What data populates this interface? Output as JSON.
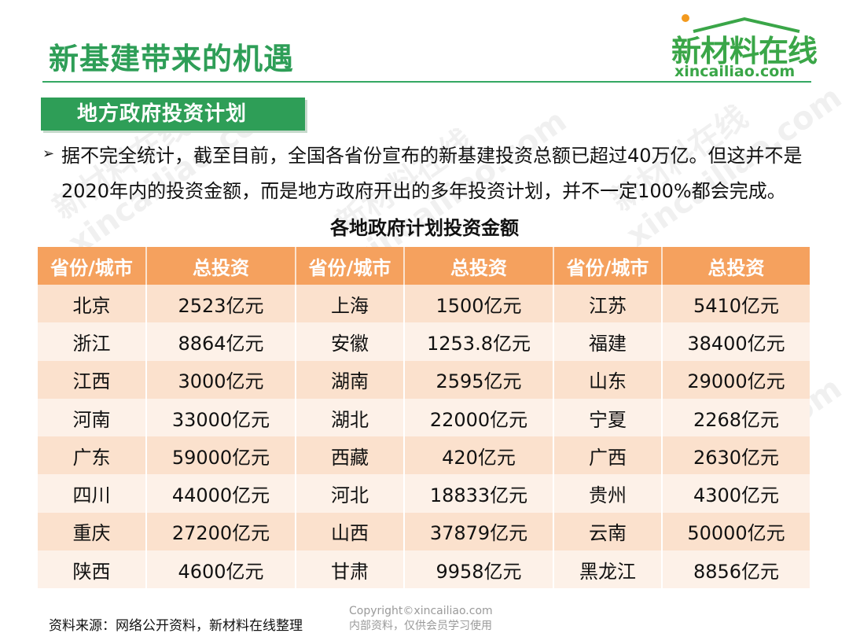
{
  "header": {
    "title": "新基建带来的机遇",
    "logo_cn": "新材料在线",
    "logo_en": "xincailiao.com"
  },
  "section": {
    "badge": "地方政府投资计划"
  },
  "intro": {
    "bullet": "➢",
    "text": "据不完全统计，截至目前，全国各省份宣布的新基建投资总额已超过40万亿。但这并不是2020年内的投资金额，而是地方政府开出的多年投资计划，并不一定100%都会完成。"
  },
  "table": {
    "caption": "各地政府计划投资金额",
    "headers": [
      "省份/城市",
      "总投资",
      "省份/城市",
      "总投资",
      "省份/城市",
      "总投资"
    ],
    "rows": [
      [
        "北京",
        "2523亿元",
        "上海",
        "1500亿元",
        "江苏",
        "5410亿元"
      ],
      [
        "浙江",
        "8864亿元",
        "安徽",
        "1253.8亿元",
        "福建",
        "38400亿元"
      ],
      [
        "江西",
        "3000亿元",
        "湖南",
        "2595亿元",
        "山东",
        "29000亿元"
      ],
      [
        "河南",
        "33000亿元",
        "湖北",
        "22000亿元",
        "宁夏",
        "2268亿元"
      ],
      [
        "广东",
        "59000亿元",
        "西藏",
        "420亿元",
        "广西",
        "2630亿元"
      ],
      [
        "四川",
        "44000亿元",
        "河北",
        "18833亿元",
        "贵州",
        "4300亿元"
      ],
      [
        "重庆",
        "27200亿元",
        "山西",
        "37879亿元",
        "云南",
        "50000亿元"
      ],
      [
        "陕西",
        "4600亿元",
        "甘肃",
        "9958亿元",
        "黑龙江",
        "8856亿元"
      ]
    ]
  },
  "footer": {
    "source": "资料来源：网络公开资料，新材料在线整理",
    "copyright_line1": "Copyright©xincailiao.com",
    "copyright_line2": "内部资料，仅供会员学习使用"
  },
  "watermark": {
    "cn": "新材料在线",
    "en": "xincailiao.com"
  },
  "colors": {
    "title_green": "#2e9e57",
    "logo_green": "#3aa648",
    "logo_orange": "#f39a1e",
    "header_orange": "#f5a15e",
    "row_odd": "#fbe1cd",
    "row_even": "#fdf1e8"
  }
}
